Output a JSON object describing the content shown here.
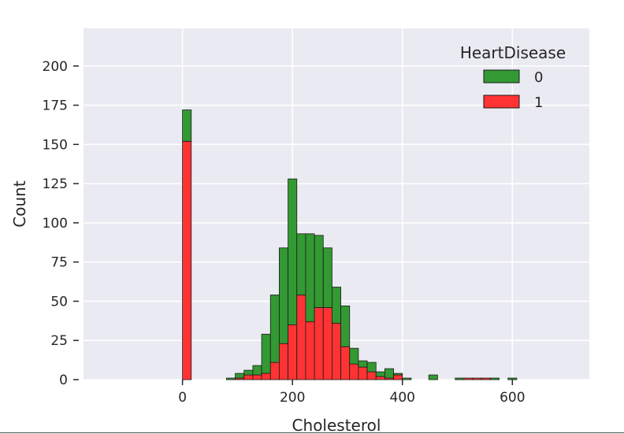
{
  "chart_data": {
    "type": "bar",
    "subtype": "stacked-histogram",
    "xlabel": "Cholesterol",
    "ylabel": "Count",
    "xlim": [
      -180,
      740
    ],
    "ylim": [
      0,
      224
    ],
    "xticks": [
      0,
      200,
      400,
      600
    ],
    "yticks": [
      0,
      25,
      50,
      75,
      100,
      125,
      150,
      175,
      200
    ],
    "bin_width": 16.0,
    "bins_start": [
      0,
      80,
      96,
      112,
      128,
      144,
      160,
      176,
      192,
      208,
      224,
      240,
      256,
      272,
      288,
      304,
      320,
      336,
      352,
      368,
      384,
      400,
      416,
      448,
      496,
      512,
      528,
      544,
      560,
      576,
      592
    ],
    "legend": {
      "title": "HeartDisease",
      "placement": "upper-right"
    },
    "series": [
      {
        "name": "1",
        "color": "#ff3333",
        "values": [
          152,
          0,
          1,
          3,
          3,
          4,
          11,
          23,
          35,
          54,
          37,
          46,
          46,
          36,
          21,
          10,
          8,
          5,
          2,
          1,
          3,
          0,
          0,
          0,
          0,
          1,
          1,
          1,
          0,
          0,
          0
        ]
      },
      {
        "name": "0",
        "color": "#339933",
        "values": [
          20,
          1,
          3,
          3,
          6,
          25,
          43,
          61,
          93,
          39,
          56,
          46,
          38,
          23,
          26,
          10,
          4,
          6,
          3,
          6,
          1,
          1,
          0,
          3,
          1,
          0,
          0,
          0,
          1,
          0,
          1
        ]
      }
    ]
  }
}
